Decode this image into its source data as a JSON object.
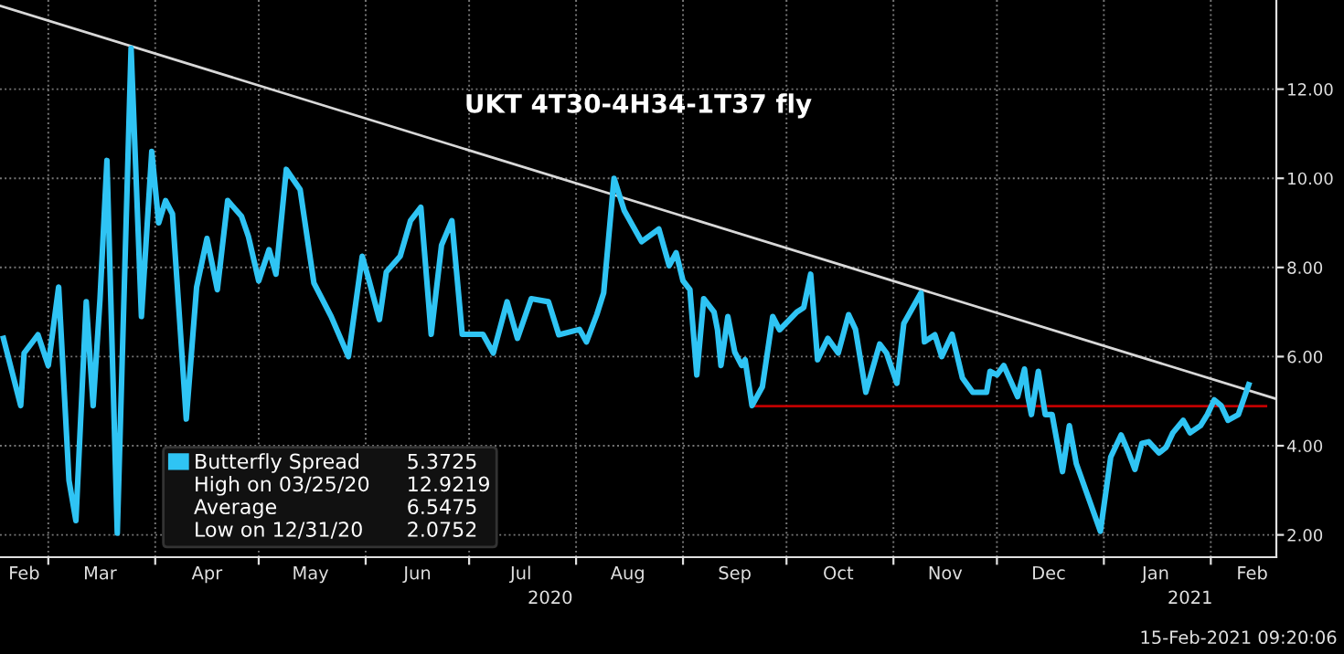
{
  "chart_data": {
    "type": "line",
    "title": "UKT 4T30-4H34-1T37 fly",
    "series": [
      {
        "name": "Butterfly Spread",
        "color": "#2fc4f4",
        "x": [
          "2020-02-17",
          "2020-02-22",
          "2020-02-23",
          "2020-02-27",
          "2020-03-01",
          "2020-03-04",
          "2020-03-07",
          "2020-03-09",
          "2020-03-12",
          "2020-03-14",
          "2020-03-16",
          "2020-03-18",
          "2020-03-21",
          "2020-03-25",
          "2020-03-28",
          "2020-03-31",
          "2020-04-02",
          "2020-04-04",
          "2020-04-06",
          "2020-04-10",
          "2020-04-13",
          "2020-04-16",
          "2020-04-19",
          "2020-04-22",
          "2020-04-26",
          "2020-04-28",
          "2020-05-01",
          "2020-05-04",
          "2020-05-06",
          "2020-05-09",
          "2020-05-13",
          "2020-05-17",
          "2020-05-22",
          "2020-05-27",
          "2020-05-31",
          "2020-06-02",
          "2020-06-05",
          "2020-06-07",
          "2020-06-11",
          "2020-06-14",
          "2020-06-17",
          "2020-06-20",
          "2020-06-23",
          "2020-06-26",
          "2020-06-29",
          "2020-07-05",
          "2020-07-08",
          "2020-07-12",
          "2020-07-15",
          "2020-07-19",
          "2020-07-24",
          "2020-07-27",
          "2020-08-02",
          "2020-08-04",
          "2020-08-07",
          "2020-08-09",
          "2020-08-12",
          "2020-08-15",
          "2020-08-20",
          "2020-08-25",
          "2020-08-28",
          "2020-08-30",
          "2020-09-01",
          "2020-09-03",
          "2020-09-05",
          "2020-09-07",
          "2020-09-10",
          "2020-09-11",
          "2020-09-12",
          "2020-09-14",
          "2020-09-16",
          "2020-09-18",
          "2020-09-19",
          "2020-09-21",
          "2020-09-24",
          "2020-09-27",
          "2020-09-29",
          "2020-10-04",
          "2020-10-06",
          "2020-10-08",
          "2020-10-10",
          "2020-10-13",
          "2020-10-16",
          "2020-10-19",
          "2020-10-21",
          "2020-10-24",
          "2020-10-28",
          "2020-10-30",
          "2020-11-02",
          "2020-11-04",
          "2020-11-09",
          "2020-11-10",
          "2020-11-13",
          "2020-11-15",
          "2020-11-18",
          "2020-11-21",
          "2020-11-24",
          "2020-11-28",
          "2020-11-29",
          "2020-12-01",
          "2020-12-03",
          "2020-12-07",
          "2020-12-09",
          "2020-12-10",
          "2020-12-11",
          "2020-12-13",
          "2020-12-15",
          "2020-12-17",
          "2020-12-20",
          "2020-12-22",
          "2020-12-24",
          "2020-12-31",
          "2021-01-03",
          "2021-01-06",
          "2021-01-08",
          "2021-01-10",
          "2021-01-12",
          "2021-01-14",
          "2021-01-17",
          "2021-01-19",
          "2021-01-21",
          "2021-01-24",
          "2021-01-26",
          "2021-01-29",
          "2021-01-31",
          "2021-02-02",
          "2021-02-04",
          "2021-02-06",
          "2021-02-09",
          "2021-02-12"
        ],
        "values": [
          6.41,
          4.9,
          6.08,
          6.49,
          5.8,
          7.56,
          3.22,
          2.32,
          7.23,
          4.9,
          7.3,
          10.4,
          2.04,
          12.92,
          6.9,
          10.6,
          9.0,
          9.5,
          9.2,
          4.6,
          7.56,
          8.65,
          7.5,
          9.5,
          9.15,
          8.7,
          7.7,
          8.4,
          7.85,
          10.2,
          9.75,
          7.65,
          6.9,
          6.0,
          8.25,
          7.7,
          6.83,
          7.9,
          8.25,
          9.05,
          9.35,
          6.5,
          8.5,
          9.05,
          6.5,
          6.5,
          6.08,
          7.23,
          6.41,
          7.3,
          7.23,
          6.49,
          6.61,
          6.33,
          6.94,
          7.43,
          10.0,
          9.27,
          8.58,
          8.86,
          8.04,
          8.33,
          7.7,
          7.5,
          5.59,
          7.3,
          7.0,
          6.6,
          5.8,
          6.9,
          6.1,
          5.8,
          5.93,
          4.9,
          5.32,
          6.9,
          6.6,
          7.0,
          7.1,
          7.85,
          5.93,
          6.41,
          6.08,
          6.94,
          6.61,
          5.2,
          6.28,
          6.08,
          5.4,
          6.74,
          7.43,
          6.33,
          6.49,
          6.0,
          6.5,
          5.52,
          5.2,
          5.2,
          5.67,
          5.59,
          5.8,
          5.1,
          5.72,
          5.1,
          4.7,
          5.67,
          4.7,
          4.7,
          3.42,
          4.45,
          3.6,
          2.08,
          3.75,
          4.24,
          3.88,
          3.47,
          4.05,
          4.09,
          3.84,
          3.96,
          4.29,
          4.57,
          4.29,
          4.45,
          4.7,
          5.03,
          4.9,
          4.57,
          4.7,
          5.37
        ]
      },
      {
        "type": "line",
        "color": "#d8d8d8",
        "x": [
          "2020-02-16",
          "2021-02-20"
        ],
        "values": [
          13.87,
          5.05
        ]
      },
      {
        "type": "line",
        "color": "#c00000",
        "x": [
          "2020-09-21",
          "2021-02-17"
        ],
        "values": [
          4.89,
          4.89
        ]
      }
    ],
    "xlim": [
      "2020-02-16",
      "2021-02-20"
    ],
    "xticks": [
      {
        "value": "2020-03-01",
        "label": null
      },
      {
        "value": "2020-04-01",
        "label": null
      },
      {
        "value": "2020-05-01",
        "label": null
      },
      {
        "value": "2020-06-01",
        "label": null
      },
      {
        "value": "2020-07-01",
        "label": null
      },
      {
        "value": "2020-08-01",
        "label": null
      },
      {
        "value": "2020-09-01",
        "label": null
      },
      {
        "value": "2020-10-01",
        "label": null
      },
      {
        "value": "2020-11-01",
        "label": null
      },
      {
        "value": "2020-12-01",
        "label": null
      },
      {
        "value": "2021-01-01",
        "label": null
      },
      {
        "value": "2021-02-01",
        "label": null
      },
      {
        "value": "2020-02-23",
        "label": "Feb"
      },
      {
        "value": "2020-03-16",
        "label": "Mar"
      },
      {
        "value": "2020-04-16",
        "label": "Apr"
      },
      {
        "value": "2020-05-16",
        "label": "May"
      },
      {
        "value": "2020-06-16",
        "label": "Jun"
      },
      {
        "value": "2020-07-16",
        "label": "Jul"
      },
      {
        "value": "2020-08-16",
        "label": "Aug"
      },
      {
        "value": "2020-09-16",
        "label": "Sep"
      },
      {
        "value": "2020-10-16",
        "label": "Oct"
      },
      {
        "value": "2020-11-16",
        "label": "Nov"
      },
      {
        "value": "2020-12-16",
        "label": "Dec"
      },
      {
        "value": "2021-01-16",
        "label": "Jan"
      },
      {
        "value": "2021-02-13",
        "label": "Feb"
      }
    ],
    "ylim": [
      1.5,
      14
    ],
    "yticks": [
      {
        "value": 2,
        "label": "2.00"
      },
      {
        "value": 4,
        "label": "4.00"
      },
      {
        "value": 6,
        "label": "6.00"
      },
      {
        "value": 8,
        "label": "8.00"
      },
      {
        "value": 10,
        "label": "10.00"
      },
      {
        "value": 12,
        "label": "12.00"
      }
    ],
    "grid": true,
    "legend": "bottom left",
    "marker": "none",
    "line_style": "solid",
    "annotations": [
      "5.3725",
      "High on 03/25/20",
      "12.9219",
      "Average",
      "6.5475",
      "Low on 12/31/20",
      "2.0752",
      "2020",
      "2021",
      "15-Feb-2021 09:20:06"
    ]
  }
}
